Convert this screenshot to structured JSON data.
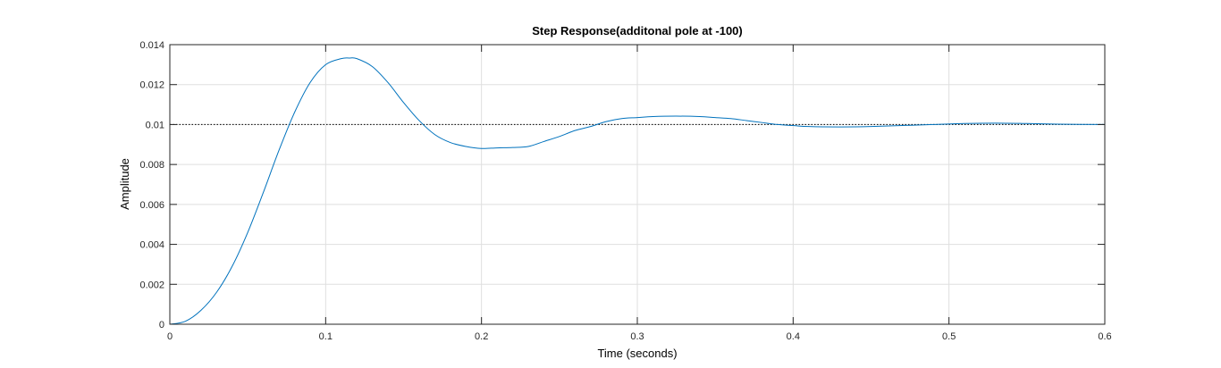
{
  "chart_data": {
    "type": "line",
    "title": "Step Response(additonal pole at -100)",
    "xlabel": "Time (seconds)",
    "ylabel": "Amplitude",
    "xlim": [
      0,
      0.6
    ],
    "ylim": [
      0,
      0.014
    ],
    "grid": true,
    "legend": "none",
    "x_ticks": [
      0,
      0.1,
      0.2,
      0.3,
      0.4,
      0.5,
      0.6
    ],
    "x_tick_labels": [
      "0",
      "0.1",
      "0.2",
      "0.3",
      "0.4",
      "0.5",
      "0.6"
    ],
    "y_ticks": [
      0,
      0.002,
      0.004,
      0.006,
      0.008,
      0.01,
      0.012,
      0.014
    ],
    "y_tick_labels": [
      "0",
      "0.002",
      "0.004",
      "0.006",
      "0.008",
      "0.01",
      "0.012",
      "0.014"
    ],
    "steady_state_line": {
      "y": 0.01,
      "style": "dotted",
      "color": "#000000"
    },
    "series": [
      {
        "color": "#0072BD",
        "x": [
          0,
          0.01,
          0.02,
          0.03,
          0.04,
          0.05,
          0.06,
          0.07,
          0.08,
          0.09,
          0.1,
          0.11,
          0.115,
          0.12,
          0.13,
          0.14,
          0.15,
          0.16,
          0.17,
          0.18,
          0.19,
          0.2,
          0.21,
          0.22,
          0.23,
          0.24,
          0.25,
          0.26,
          0.27,
          0.28,
          0.29,
          0.3,
          0.31,
          0.325,
          0.34,
          0.35,
          0.36,
          0.37,
          0.38,
          0.39,
          0.4,
          0.41,
          0.43,
          0.45,
          0.47,
          0.49,
          0.51,
          0.53,
          0.55,
          0.57,
          0.6
        ],
        "y": [
          0,
          0.00015,
          0.0007,
          0.0016,
          0.0029,
          0.0046,
          0.0066,
          0.0087,
          0.0106,
          0.0121,
          0.013,
          0.0133,
          0.01333,
          0.0133,
          0.0129,
          0.0121,
          0.0111,
          0.0102,
          0.0095,
          0.0091,
          0.0089,
          0.0088,
          0.00883,
          0.00885,
          0.0089,
          0.00915,
          0.0094,
          0.0097,
          0.0099,
          0.01015,
          0.0103,
          0.01035,
          0.0104,
          0.01042,
          0.0104,
          0.01035,
          0.0103,
          0.0102,
          0.0101,
          0.01,
          0.00995,
          0.0099,
          0.00988,
          0.0099,
          0.00995,
          0.01,
          0.01005,
          0.01007,
          0.01005,
          0.01002,
          0.01
        ]
      }
    ]
  }
}
